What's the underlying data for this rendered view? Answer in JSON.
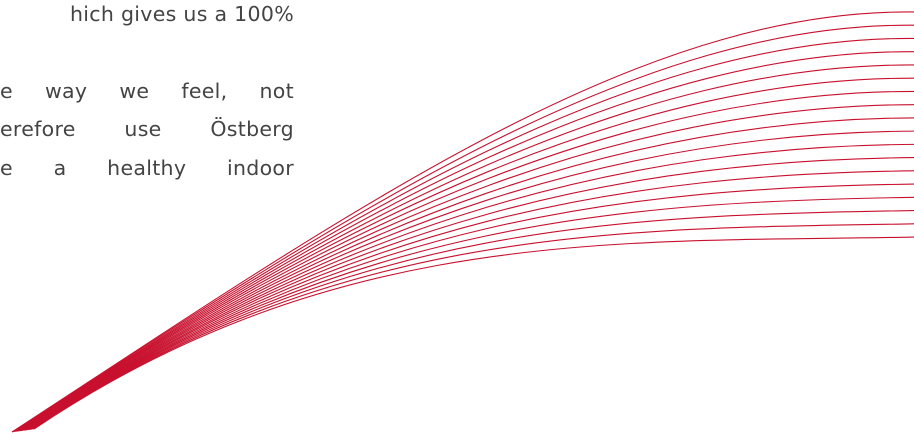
{
  "text": {
    "line1": "hich gives us a 100%",
    "line2": "e way we feel, not",
    "line3": "erefore use Östberg",
    "line4": "e a healthy indoor"
  },
  "colors": {
    "text": "#444444",
    "accent": "#c8102e"
  }
}
